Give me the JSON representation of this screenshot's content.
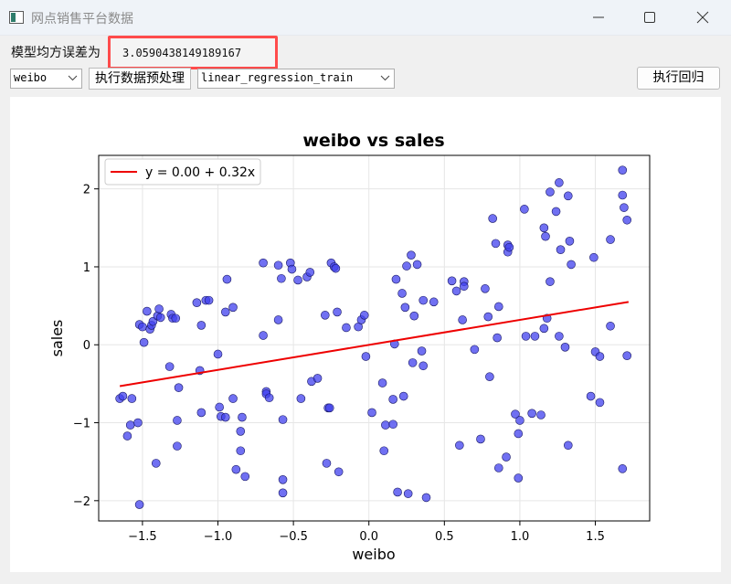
{
  "window": {
    "title": "网点销售平台数据"
  },
  "controls": {
    "mse_label": "模型均方误差为",
    "mse_value": "3.0590438149189167",
    "feature_select": "weibo",
    "preprocess_button": "执行数据预处理",
    "model_select": "linear_regression_train",
    "run_button": "执行回归"
  },
  "colors": {
    "points": "#4040ee",
    "line": "#ee0000",
    "highlight": "#ff4b4b"
  },
  "chart_data": {
    "type": "scatter",
    "title": "weibo vs sales",
    "xlabel": "weibo",
    "ylabel": "sales",
    "xlim": [
      -1.79,
      1.86
    ],
    "ylim": [
      -2.26,
      2.43
    ],
    "xticks": [
      -1.5,
      -1.0,
      -0.5,
      0.0,
      0.5,
      1.0,
      1.5
    ],
    "xtick_labels": [
      "−1.5",
      "−1.0",
      "−0.5",
      "0.0",
      "0.5",
      "1.0",
      "1.5"
    ],
    "yticks": [
      -2,
      -1,
      0,
      1,
      2
    ],
    "ytick_labels": [
      "−2",
      "−1",
      "0",
      "1",
      "2"
    ],
    "grid": true,
    "legend": {
      "location": "upper-left",
      "entries": [
        "y = 0.00 + 0.32x"
      ]
    },
    "regression_line": {
      "label": "y = 0.00 + 0.32x",
      "x": [
        -1.65,
        1.72
      ],
      "y": [
        -0.53,
        0.55
      ]
    },
    "points": [
      [
        -1.65,
        -0.69
      ],
      [
        -1.63,
        -0.66
      ],
      [
        -1.6,
        -1.17
      ],
      [
        -1.58,
        -1.03
      ],
      [
        -1.57,
        -0.69
      ],
      [
        -1.53,
        -1.0
      ],
      [
        -1.52,
        0.26
      ],
      [
        -1.52,
        -2.05
      ],
      [
        -1.5,
        0.23
      ],
      [
        -1.49,
        0.03
      ],
      [
        -1.47,
        0.43
      ],
      [
        -1.45,
        0.2
      ],
      [
        -1.44,
        0.25
      ],
      [
        -1.43,
        0.3
      ],
      [
        -1.41,
        -1.52
      ],
      [
        -1.4,
        0.37
      ],
      [
        -1.39,
        0.46
      ],
      [
        -1.38,
        0.35
      ],
      [
        -1.32,
        -0.28
      ],
      [
        -1.31,
        0.39
      ],
      [
        -1.3,
        0.34
      ],
      [
        -1.28,
        0.34
      ],
      [
        -1.27,
        -0.97
      ],
      [
        -1.27,
        -1.3
      ],
      [
        -1.26,
        -0.55
      ],
      [
        -1.14,
        0.54
      ],
      [
        -1.12,
        -0.33
      ],
      [
        -1.11,
        0.25
      ],
      [
        -1.11,
        -0.87
      ],
      [
        -1.08,
        0.57
      ],
      [
        -1.06,
        0.57
      ],
      [
        -1.0,
        -0.12
      ],
      [
        -0.99,
        -0.8
      ],
      [
        -0.98,
        -0.92
      ],
      [
        -0.95,
        -0.93
      ],
      [
        -0.95,
        0.42
      ],
      [
        -0.94,
        0.84
      ],
      [
        -0.9,
        0.48
      ],
      [
        -0.9,
        -0.69
      ],
      [
        -0.88,
        -1.6
      ],
      [
        -0.85,
        -1.11
      ],
      [
        -0.85,
        -1.36
      ],
      [
        -0.84,
        -0.93
      ],
      [
        -0.82,
        -1.69
      ],
      [
        -0.7,
        1.05
      ],
      [
        -0.7,
        0.12
      ],
      [
        -0.68,
        -0.6
      ],
      [
        -0.68,
        -0.63
      ],
      [
        -0.66,
        -0.68
      ],
      [
        -0.6,
        1.02
      ],
      [
        -0.6,
        0.32
      ],
      [
        -0.58,
        0.85
      ],
      [
        -0.57,
        -0.96
      ],
      [
        -0.57,
        -1.73
      ],
      [
        -0.57,
        -1.9
      ],
      [
        -0.52,
        1.05
      ],
      [
        -0.51,
        0.97
      ],
      [
        -0.47,
        0.83
      ],
      [
        -0.45,
        -0.69
      ],
      [
        -0.41,
        0.87
      ],
      [
        -0.39,
        0.93
      ],
      [
        -0.38,
        -0.47
      ],
      [
        -0.34,
        -0.43
      ],
      [
        -0.29,
        0.38
      ],
      [
        -0.28,
        -1.52
      ],
      [
        -0.27,
        -0.81
      ],
      [
        -0.26,
        -0.81
      ],
      [
        -0.25,
        1.05
      ],
      [
        -0.23,
        1.0
      ],
      [
        -0.22,
        0.98
      ],
      [
        -0.21,
        0.42
      ],
      [
        -0.2,
        -1.63
      ],
      [
        -0.15,
        0.22
      ],
      [
        -0.07,
        0.23
      ],
      [
        -0.05,
        0.32
      ],
      [
        -0.03,
        0.38
      ],
      [
        -0.02,
        -0.15
      ],
      [
        0.02,
        -0.87
      ],
      [
        0.09,
        -0.49
      ],
      [
        0.1,
        -1.36
      ],
      [
        0.11,
        -1.03
      ],
      [
        0.16,
        -1.02
      ],
      [
        0.16,
        -0.7
      ],
      [
        0.17,
        0.01
      ],
      [
        0.18,
        0.84
      ],
      [
        0.19,
        -1.89
      ],
      [
        0.22,
        0.66
      ],
      [
        0.23,
        -0.66
      ],
      [
        0.24,
        0.48
      ],
      [
        0.25,
        1.01
      ],
      [
        0.26,
        -1.91
      ],
      [
        0.28,
        1.15
      ],
      [
        0.29,
        -0.23
      ],
      [
        0.3,
        0.37
      ],
      [
        0.32,
        1.03
      ],
      [
        0.35,
        -0.08
      ],
      [
        0.36,
        -0.27
      ],
      [
        0.36,
        0.57
      ],
      [
        0.38,
        -1.96
      ],
      [
        0.43,
        0.55
      ],
      [
        0.55,
        0.82
      ],
      [
        0.58,
        0.69
      ],
      [
        0.6,
        -1.29
      ],
      [
        0.62,
        0.32
      ],
      [
        0.63,
        0.81
      ],
      [
        0.63,
        0.75
      ],
      [
        0.7,
        -0.06
      ],
      [
        0.74,
        -1.21
      ],
      [
        0.77,
        0.72
      ],
      [
        0.79,
        0.36
      ],
      [
        0.8,
        -0.41
      ],
      [
        0.82,
        1.62
      ],
      [
        0.84,
        1.3
      ],
      [
        0.85,
        0.09
      ],
      [
        0.86,
        0.49
      ],
      [
        0.86,
        -1.58
      ],
      [
        0.91,
        -1.44
      ],
      [
        0.92,
        1.28
      ],
      [
        0.92,
        1.19
      ],
      [
        0.93,
        1.25
      ],
      [
        0.97,
        -0.89
      ],
      [
        0.99,
        -1.14
      ],
      [
        0.99,
        -1.71
      ],
      [
        1.0,
        -0.97
      ],
      [
        1.03,
        1.74
      ],
      [
        1.04,
        0.11
      ],
      [
        1.08,
        -0.88
      ],
      [
        1.1,
        0.11
      ],
      [
        1.14,
        -0.9
      ],
      [
        1.16,
        1.5
      ],
      [
        1.16,
        0.21
      ],
      [
        1.17,
        1.39
      ],
      [
        1.18,
        0.34
      ],
      [
        1.2,
        1.96
      ],
      [
        1.2,
        0.81
      ],
      [
        1.24,
        1.71
      ],
      [
        1.26,
        2.08
      ],
      [
        1.26,
        0.11
      ],
      [
        1.27,
        1.22
      ],
      [
        1.3,
        -0.03
      ],
      [
        1.32,
        1.91
      ],
      [
        1.32,
        -1.29
      ],
      [
        1.33,
        1.33
      ],
      [
        1.34,
        1.03
      ],
      [
        1.47,
        -0.66
      ],
      [
        1.49,
        1.12
      ],
      [
        1.5,
        -0.09
      ],
      [
        1.53,
        -0.15
      ],
      [
        1.53,
        -0.74
      ],
      [
        1.6,
        1.35
      ],
      [
        1.6,
        0.24
      ],
      [
        1.68,
        2.24
      ],
      [
        1.68,
        1.92
      ],
      [
        1.68,
        -1.59
      ],
      [
        1.69,
        1.76
      ],
      [
        1.71,
        1.6
      ],
      [
        1.71,
        -0.14
      ]
    ]
  }
}
